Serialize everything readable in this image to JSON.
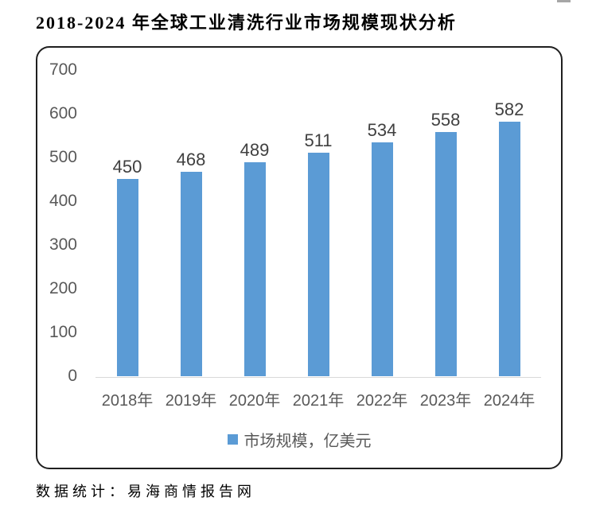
{
  "page": {
    "title": "2018-2024 年全球工业清洗行业市场规模现状分析",
    "source_note": "数据统计：易海商情报告网"
  },
  "chart_data": {
    "type": "bar",
    "title": "",
    "xlabel": "",
    "ylabel": "",
    "categories": [
      "2018年",
      "2019年",
      "2020年",
      "2021年",
      "2022年",
      "2023年",
      "2024年"
    ],
    "values": [
      450,
      468,
      489,
      511,
      534,
      558,
      582
    ],
    "series_name": "市场规模，亿美元",
    "ylim": [
      0,
      700
    ],
    "yticks": [
      0,
      100,
      200,
      300,
      400,
      500,
      600,
      700
    ],
    "grid": false,
    "data_labels": true,
    "legend_position": "bottom",
    "colors": {
      "bar": "#5b9bd5",
      "axis_text": "#595959",
      "value_label": "#404040",
      "axis_line": "#d9d9d9",
      "frame_border": "#1f1f1f",
      "title_text": "#000000"
    }
  }
}
